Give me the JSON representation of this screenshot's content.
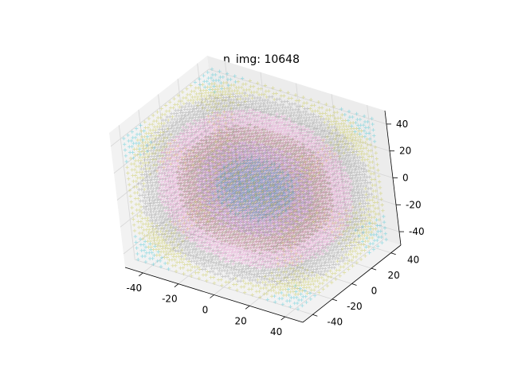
{
  "chart_data": {
    "type": "scatter",
    "projection": "3d",
    "title": "n_img: 10648",
    "xlabel": "",
    "ylabel": "",
    "zlabel": "",
    "xlim": [
      -50,
      50
    ],
    "ylim": [
      -50,
      50
    ],
    "zlim": [
      -50,
      50
    ],
    "xticks": [
      -40,
      -20,
      0,
      20,
      40
    ],
    "yticks": [
      -40,
      -20,
      0,
      20,
      40
    ],
    "zticks": [
      -40,
      -20,
      0,
      20,
      40
    ],
    "grid": true,
    "legend": "none",
    "marker": "+",
    "n_points": 10648,
    "grid_points_per_axis": 22,
    "coordinate_range": [
      -45,
      45
    ],
    "colormap": [
      "#17becf",
      "#bcbd22",
      "#7f7f7f",
      "#e377c2",
      "#8c564b",
      "#9467bd",
      "#1f77b4"
    ],
    "pane_color": "#f2f2f2"
  }
}
